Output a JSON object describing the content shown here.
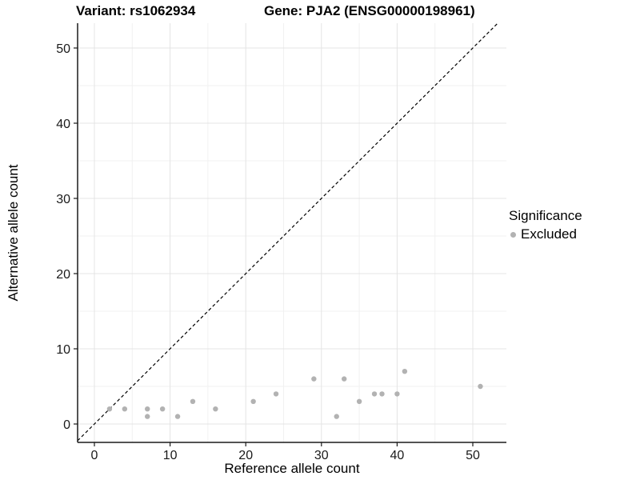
{
  "title": {
    "variant": "Variant: rs1062934",
    "gene": "Gene: PJA2 (ENSG00000198961)"
  },
  "legend": {
    "title": "Significance",
    "items": [
      {
        "label": "Excluded",
        "color": "#b2b2b2"
      }
    ]
  },
  "chart_data": {
    "type": "scatter",
    "title": "Variant: rs1062934   Gene: PJA2 (ENSG00000198961)",
    "xlabel": "Reference allele count",
    "ylabel": "Alternative allele count",
    "xlim": [
      -2.2,
      54.4
    ],
    "ylim": [
      -2.5,
      53.3
    ],
    "x_ticks": [
      0,
      10,
      20,
      30,
      40,
      50
    ],
    "y_ticks": [
      0,
      10,
      20,
      30,
      40,
      50
    ],
    "minor_ticks": [
      5,
      15,
      25,
      35,
      45
    ],
    "grid": true,
    "legend_position": "right",
    "reference_line": {
      "type": "identity",
      "slope": 1,
      "intercept": 0,
      "style": "dashed",
      "color": "#000000"
    },
    "series": [
      {
        "name": "Excluded",
        "color": "#b2b2b2",
        "points": [
          [
            2,
            2
          ],
          [
            4,
            2
          ],
          [
            7,
            1
          ],
          [
            7,
            2
          ],
          [
            9,
            2
          ],
          [
            11,
            1
          ],
          [
            13,
            3
          ],
          [
            16,
            2
          ],
          [
            21,
            3
          ],
          [
            24,
            4
          ],
          [
            29,
            6
          ],
          [
            32,
            1
          ],
          [
            33,
            6
          ],
          [
            35,
            3
          ],
          [
            37,
            4
          ],
          [
            38,
            4
          ],
          [
            40,
            4
          ],
          [
            41,
            7
          ],
          [
            51,
            5
          ]
        ]
      }
    ],
    "colors": {
      "major_grid": "#e4e4e4",
      "minor_grid": "#f1f1f1",
      "axis_line": "#1a1a1a",
      "tick_label": "#1a1a1a",
      "axis_title": "#000000",
      "point": "#b2b2b2"
    }
  }
}
